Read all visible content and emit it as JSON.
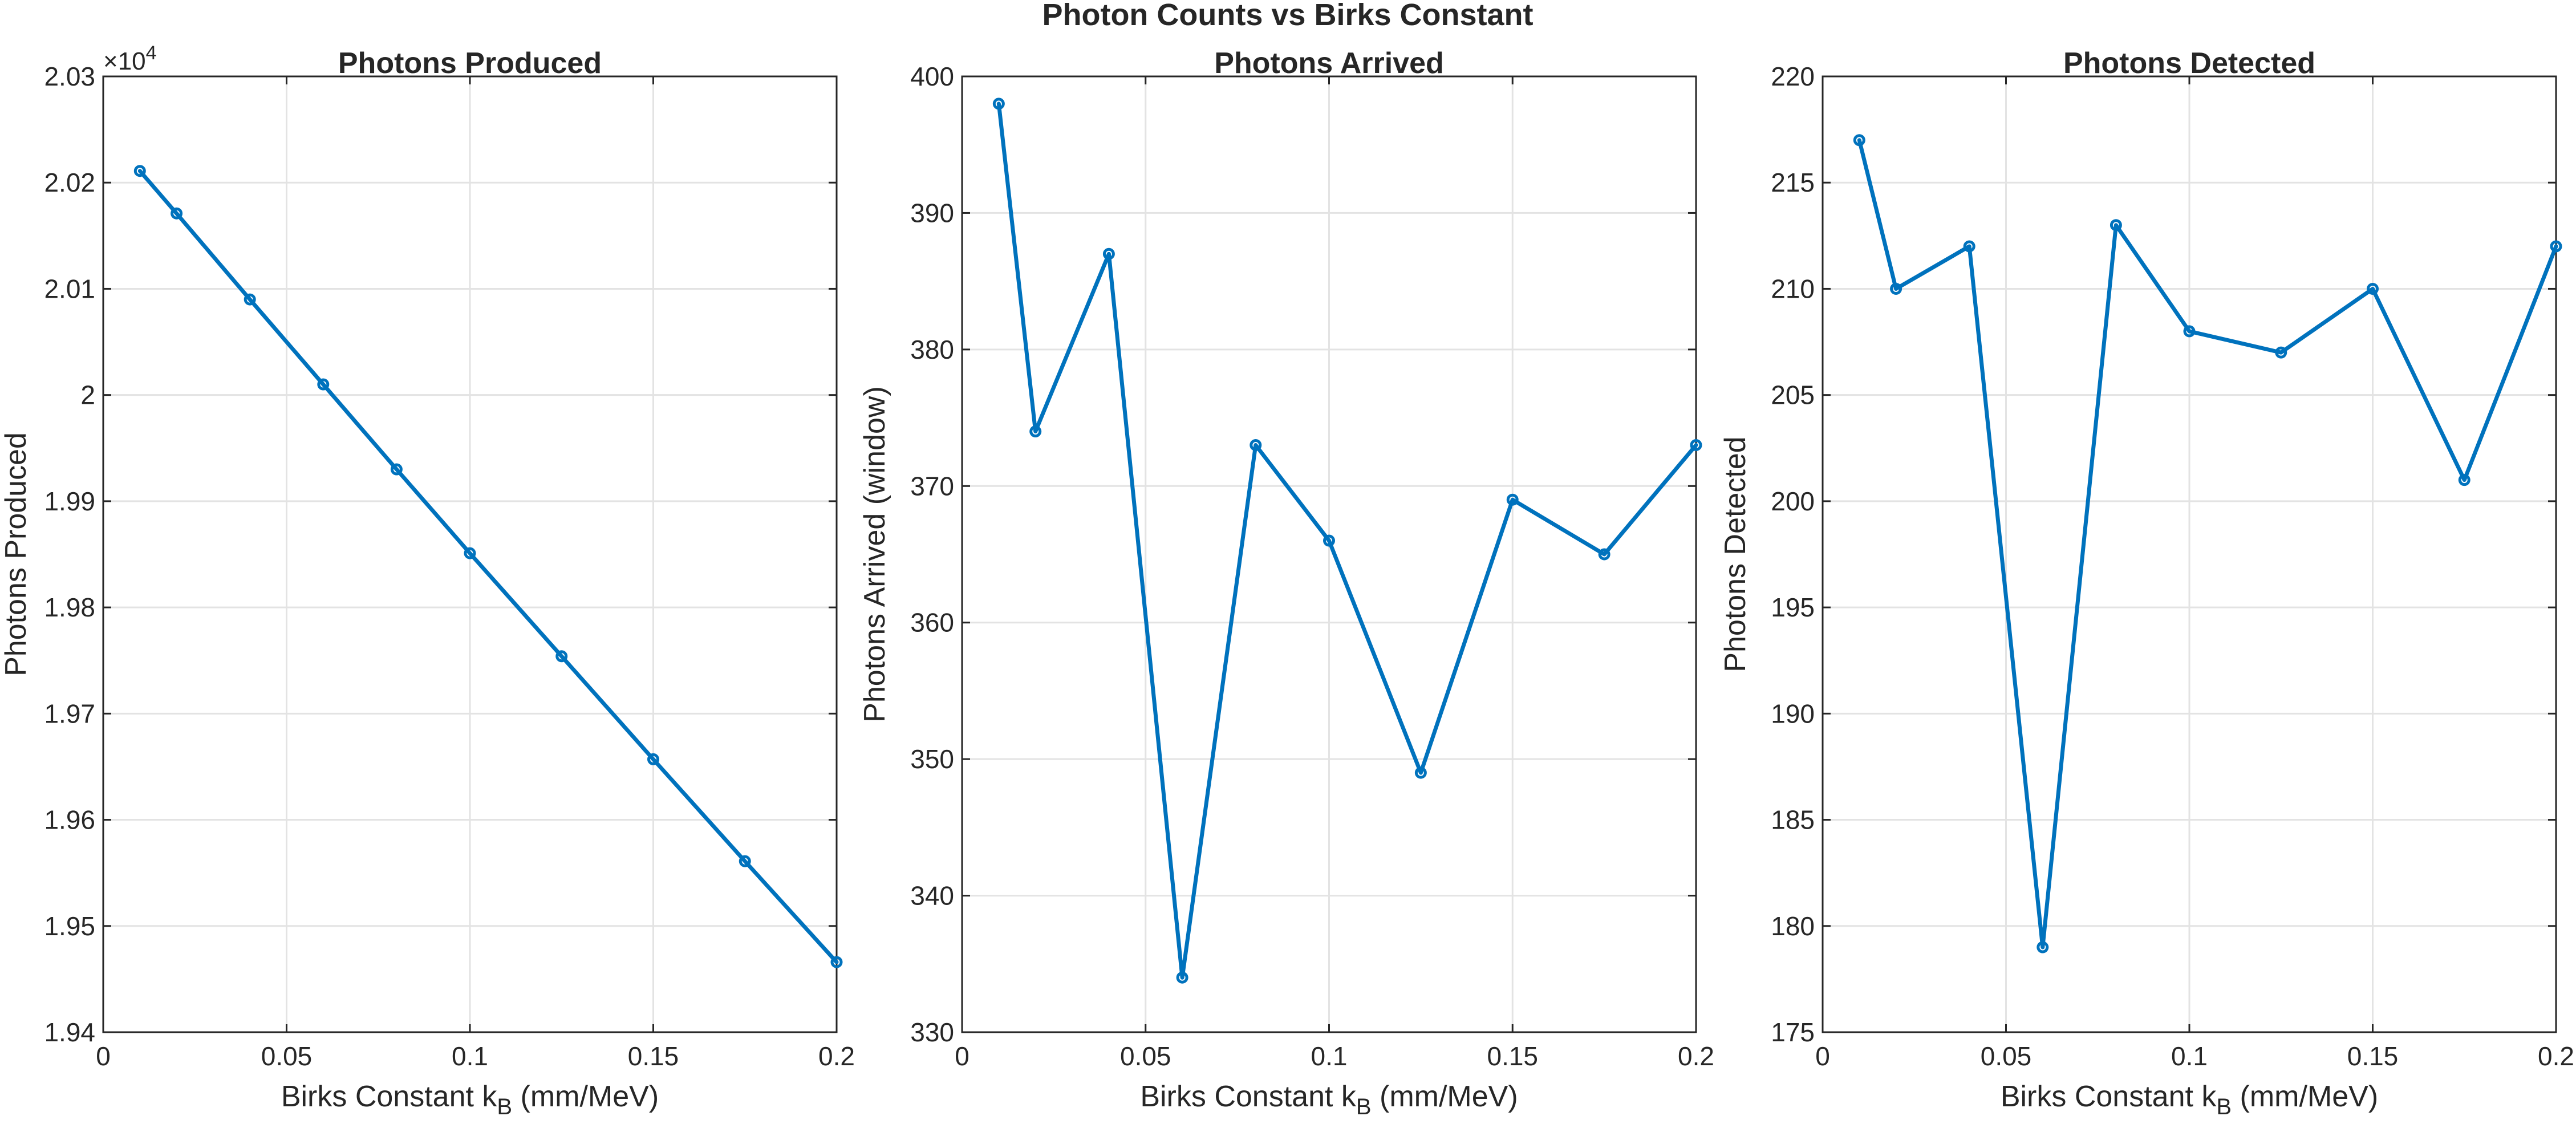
{
  "figure": {
    "title": "Photon Counts vs Birks Constant",
    "line_color": "#0072bd",
    "grid": true
  },
  "chart_data": [
    {
      "type": "line",
      "title": "Photons Produced",
      "xlabel": "Birks Constant k_B (mm/MeV)",
      "ylabel": "Photons Produced",
      "xlim": [
        0,
        0.2
      ],
      "ylim": [
        19400,
        20300
      ],
      "x_ticks": [
        "0",
        "0.05",
        "0.1",
        "0.15",
        "0.2"
      ],
      "y_ticks": [
        "1.94",
        "1.95",
        "1.96",
        "1.97",
        "1.98",
        "1.99",
        "2",
        "2.01",
        "2.02",
        "2.03"
      ],
      "y_exponent_label": "×10",
      "y_exponent_power": "4",
      "series": [
        {
          "x": [
            0.01,
            0.02,
            0.04,
            0.06,
            0.08,
            0.1,
            0.125,
            0.15,
            0.175,
            0.2
          ],
          "values": [
            20211,
            20171,
            20090,
            20010,
            19930,
            19851,
            19754,
            19657,
            19561,
            19466
          ]
        }
      ]
    },
    {
      "type": "line",
      "title": "Photons Arrived",
      "xlabel": "Birks Constant k_B (mm/MeV)",
      "ylabel": "Photons Arrived (window)",
      "xlim": [
        0,
        0.2
      ],
      "ylim": [
        330,
        400
      ],
      "x_ticks": [
        "0",
        "0.05",
        "0.1",
        "0.15",
        "0.2"
      ],
      "y_ticks": [
        "330",
        "340",
        "350",
        "360",
        "370",
        "380",
        "390",
        "400"
      ],
      "series": [
        {
          "x": [
            0.01,
            0.02,
            0.04,
            0.06,
            0.08,
            0.1,
            0.125,
            0.15,
            0.175,
            0.2
          ],
          "values": [
            398,
            374,
            387,
            334,
            373,
            366,
            349,
            369,
            365,
            373
          ]
        }
      ]
    },
    {
      "type": "line",
      "title": "Photons Detected",
      "xlabel": "Birks Constant k_B (mm/MeV)",
      "ylabel": "Photons Detected",
      "xlim": [
        0,
        0.2
      ],
      "ylim": [
        175,
        220
      ],
      "x_ticks": [
        "0",
        "0.05",
        "0.1",
        "0.15",
        "0.2"
      ],
      "y_ticks": [
        "175",
        "180",
        "185",
        "190",
        "195",
        "200",
        "205",
        "210",
        "215",
        "220"
      ],
      "series": [
        {
          "x": [
            0.01,
            0.02,
            0.04,
            0.06,
            0.08,
            0.1,
            0.125,
            0.15,
            0.175,
            0.2
          ],
          "values": [
            217,
            210,
            212,
            179,
            213,
            208,
            207,
            210,
            201,
            212
          ]
        }
      ]
    }
  ]
}
